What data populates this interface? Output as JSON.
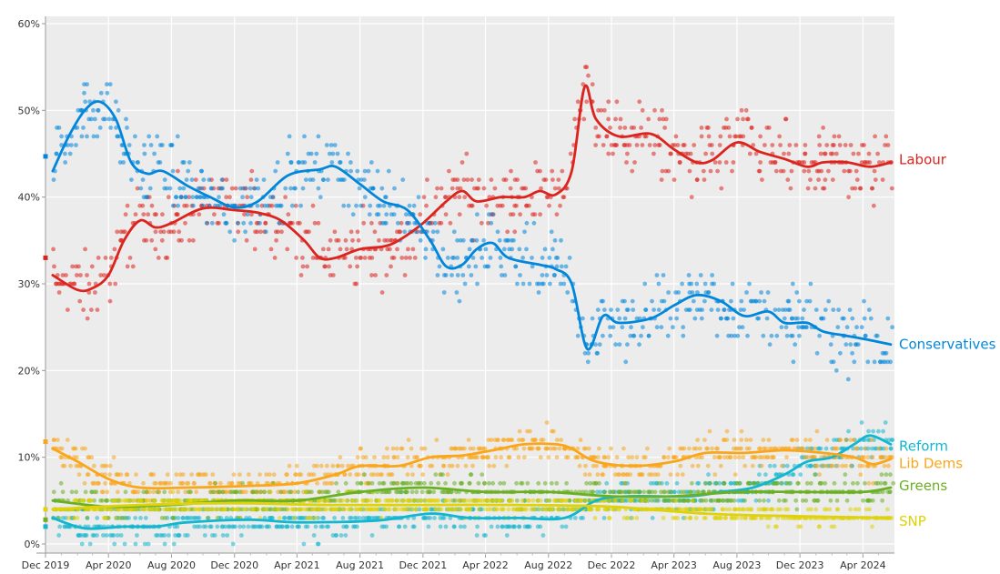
{
  "chart_data": {
    "type": "scatter",
    "title": "",
    "xlabel": "",
    "ylabel": "",
    "ylim": [
      0,
      60
    ],
    "xlim": [
      "2019-12-01",
      "2024-06-01"
    ],
    "grid": true,
    "legend": "direct labels at right end of lines",
    "y_ticks": [
      "0%",
      "10%",
      "20%",
      "30%",
      "40%",
      "50%",
      "60%"
    ],
    "x_ticks": [
      {
        "date": "2019-12-01",
        "label": "Dec 2019"
      },
      {
        "date": "2020-04-01",
        "label": "Apr 2020"
      },
      {
        "date": "2020-08-01",
        "label": "Aug 2020"
      },
      {
        "date": "2020-12-01",
        "label": "Dec 2020"
      },
      {
        "date": "2021-04-01",
        "label": "Apr 2021"
      },
      {
        "date": "2021-08-01",
        "label": "Aug 2021"
      },
      {
        "date": "2021-12-01",
        "label": "Dec 2021"
      },
      {
        "date": "2022-04-01",
        "label": "Apr 2022"
      },
      {
        "date": "2022-08-01",
        "label": "Aug 2022"
      },
      {
        "date": "2022-12-01",
        "label": "Dec 2022"
      },
      {
        "date": "2023-04-01",
        "label": "Apr 2023"
      },
      {
        "date": "2023-08-01",
        "label": "Aug 2023"
      },
      {
        "date": "2023-12-01",
        "label": "Dec 2023"
      },
      {
        "date": "2024-04-01",
        "label": "Apr 2024"
      }
    ],
    "election_2019_result": [
      {
        "party": "Conservatives",
        "value": 44.7
      },
      {
        "party": "Labour",
        "value": 33.0
      },
      {
        "party": "Lib Dems",
        "value": 11.8
      },
      {
        "party": "SNP",
        "value": 4.0
      },
      {
        "party": "Greens",
        "value": 2.8
      },
      {
        "party": "Reform",
        "value": 2.0
      }
    ],
    "series": [
      {
        "name": "Labour",
        "color": "#dc241f",
        "spread": 3.0,
        "trend": [
          [
            "2019-12-15",
            31
          ],
          [
            "2020-02-01",
            29.3
          ],
          [
            "2020-03-01",
            29.5
          ],
          [
            "2020-04-01",
            31
          ],
          [
            "2020-05-01",
            35
          ],
          [
            "2020-06-01",
            37.3
          ],
          [
            "2020-07-01",
            36.5
          ],
          [
            "2020-08-01",
            37
          ],
          [
            "2020-10-01",
            38.7
          ],
          [
            "2020-12-01",
            38.5
          ],
          [
            "2021-01-15",
            38.2
          ],
          [
            "2021-03-01",
            37.3
          ],
          [
            "2021-04-15",
            35
          ],
          [
            "2021-05-15",
            33
          ],
          [
            "2021-06-15",
            33
          ],
          [
            "2021-08-01",
            34
          ],
          [
            "2021-09-15",
            34.3
          ],
          [
            "2021-10-15",
            35
          ],
          [
            "2021-12-01",
            37
          ],
          [
            "2022-01-15",
            39.5
          ],
          [
            "2022-02-15",
            40.7
          ],
          [
            "2022-03-15",
            39.5
          ],
          [
            "2022-05-01",
            40
          ],
          [
            "2022-06-15",
            40
          ],
          [
            "2022-07-15",
            40.7
          ],
          [
            "2022-08-15",
            40.3
          ],
          [
            "2022-09-15",
            43
          ],
          [
            "2022-10-10",
            52.7
          ],
          [
            "2022-11-01",
            49
          ],
          [
            "2022-12-15",
            47
          ],
          [
            "2023-02-15",
            47.3
          ],
          [
            "2023-04-01",
            45.5
          ],
          [
            "2023-05-15",
            44
          ],
          [
            "2023-06-15",
            44.3
          ],
          [
            "2023-08-01",
            46.3
          ],
          [
            "2023-09-15",
            45.2
          ],
          [
            "2023-11-01",
            44.4
          ],
          [
            "2023-12-15",
            43.5
          ],
          [
            "2024-01-15",
            44
          ],
          [
            "2024-03-01",
            44
          ],
          [
            "2024-04-15",
            43.5
          ],
          [
            "2024-05-25",
            44
          ]
        ]
      },
      {
        "name": "Conservatives",
        "color": "#0087dc",
        "spread": 3.0,
        "trend": [
          [
            "2019-12-15",
            43
          ],
          [
            "2020-01-15",
            47
          ],
          [
            "2020-02-15",
            50
          ],
          [
            "2020-03-15",
            51
          ],
          [
            "2020-04-15",
            49
          ],
          [
            "2020-05-15",
            44
          ],
          [
            "2020-06-15",
            42.7
          ],
          [
            "2020-07-15",
            43
          ],
          [
            "2020-09-01",
            41.3
          ],
          [
            "2020-10-15",
            40
          ],
          [
            "2020-12-01",
            38.8
          ],
          [
            "2021-01-15",
            39.5
          ],
          [
            "2021-03-15",
            42.5
          ],
          [
            "2021-05-15",
            43.2
          ],
          [
            "2021-06-15",
            43.5
          ],
          [
            "2021-08-01",
            41.5
          ],
          [
            "2021-09-15",
            39.5
          ],
          [
            "2021-11-01",
            38.5
          ],
          [
            "2021-12-15",
            35
          ],
          [
            "2022-01-15",
            32
          ],
          [
            "2022-02-15",
            32.2
          ],
          [
            "2022-03-15",
            34
          ],
          [
            "2022-04-15",
            34.7
          ],
          [
            "2022-05-15",
            33
          ],
          [
            "2022-07-15",
            32.2
          ],
          [
            "2022-08-15",
            31.7
          ],
          [
            "2022-09-15",
            30
          ],
          [
            "2022-10-15",
            22.5
          ],
          [
            "2022-11-15",
            26.3
          ],
          [
            "2022-12-15",
            25.5
          ],
          [
            "2023-02-15",
            26
          ],
          [
            "2023-04-01",
            27.5
          ],
          [
            "2023-05-15",
            28.7
          ],
          [
            "2023-07-01",
            28
          ],
          [
            "2023-08-15",
            26.3
          ],
          [
            "2023-10-01",
            26.8
          ],
          [
            "2023-11-01",
            25.5
          ],
          [
            "2023-12-15",
            25.5
          ],
          [
            "2024-01-15",
            24.5
          ],
          [
            "2024-03-01",
            24
          ],
          [
            "2024-04-15",
            23.5
          ],
          [
            "2024-05-25",
            23
          ]
        ]
      },
      {
        "name": "Reform",
        "color": "#12b6cf",
        "spread": 1.5,
        "trend": [
          [
            "2019-12-15",
            3
          ],
          [
            "2020-02-15",
            1.8
          ],
          [
            "2020-05-01",
            2
          ],
          [
            "2020-07-01",
            2
          ],
          [
            "2020-09-01",
            2.5
          ],
          [
            "2021-01-01",
            2.8
          ],
          [
            "2021-04-01",
            2.5
          ],
          [
            "2021-09-01",
            2.7
          ],
          [
            "2021-12-15",
            3.5
          ],
          [
            "2022-03-01",
            3
          ],
          [
            "2022-06-01",
            3
          ],
          [
            "2022-09-01",
            3
          ],
          [
            "2022-11-01",
            5
          ],
          [
            "2023-01-01",
            5.5
          ],
          [
            "2023-05-01",
            5.5
          ],
          [
            "2023-07-01",
            6
          ],
          [
            "2023-09-01",
            6.5
          ],
          [
            "2023-11-01",
            8
          ],
          [
            "2023-12-15",
            9.5
          ],
          [
            "2024-02-01",
            10
          ],
          [
            "2024-03-15",
            11.5
          ],
          [
            "2024-04-15",
            12.5
          ],
          [
            "2024-05-25",
            11.5
          ]
        ]
      },
      {
        "name": "Lib Dems",
        "color": "#faa61a",
        "spread": 1.5,
        "trend": [
          [
            "2019-12-15",
            11
          ],
          [
            "2020-02-01",
            9.5
          ],
          [
            "2020-04-01",
            7.5
          ],
          [
            "2020-06-01",
            6.5
          ],
          [
            "2020-09-01",
            6.5
          ],
          [
            "2021-01-01",
            6.7
          ],
          [
            "2021-04-01",
            7
          ],
          [
            "2021-06-15",
            8
          ],
          [
            "2021-08-01",
            9
          ],
          [
            "2021-10-15",
            9
          ],
          [
            "2021-12-15",
            10
          ],
          [
            "2022-02-15",
            10.2
          ],
          [
            "2022-04-15",
            10.8
          ],
          [
            "2022-06-15",
            11.5
          ],
          [
            "2022-08-15",
            11.5
          ],
          [
            "2022-09-15",
            11
          ],
          [
            "2022-11-01",
            9.5
          ],
          [
            "2023-01-15",
            9
          ],
          [
            "2023-04-01",
            9.5
          ],
          [
            "2023-06-01",
            10.5
          ],
          [
            "2023-08-15",
            10.5
          ],
          [
            "2023-11-01",
            10.8
          ],
          [
            "2024-01-15",
            10.5
          ],
          [
            "2024-03-15",
            10
          ],
          [
            "2024-04-20",
            9.2
          ],
          [
            "2024-05-25",
            9.8
          ]
        ]
      },
      {
        "name": "Greens",
        "color": "#6ab023",
        "spread": 1.2,
        "trend": [
          [
            "2019-12-15",
            5
          ],
          [
            "2020-04-01",
            4.3
          ],
          [
            "2020-08-01",
            4.5
          ],
          [
            "2020-12-01",
            5
          ],
          [
            "2021-04-01",
            5
          ],
          [
            "2021-08-01",
            6
          ],
          [
            "2021-12-01",
            6.5
          ],
          [
            "2022-04-01",
            6
          ],
          [
            "2022-08-01",
            6
          ],
          [
            "2022-12-01",
            5.5
          ],
          [
            "2023-04-01",
            5.5
          ],
          [
            "2023-08-01",
            6
          ],
          [
            "2023-12-01",
            6
          ],
          [
            "2024-04-01",
            6
          ],
          [
            "2024-05-25",
            6.5
          ]
        ]
      },
      {
        "name": "SNP",
        "color": "#dfd20a",
        "spread": 0.8,
        "trend": [
          [
            "2019-12-15",
            4
          ],
          [
            "2020-06-01",
            4.5
          ],
          [
            "2020-12-01",
            4.7
          ],
          [
            "2021-06-01",
            4.5
          ],
          [
            "2021-12-01",
            4.5
          ],
          [
            "2022-06-01",
            4.5
          ],
          [
            "2022-12-01",
            4.3
          ],
          [
            "2023-06-01",
            3.5
          ],
          [
            "2023-12-01",
            3.2
          ],
          [
            "2024-05-25",
            3
          ]
        ]
      }
    ]
  }
}
